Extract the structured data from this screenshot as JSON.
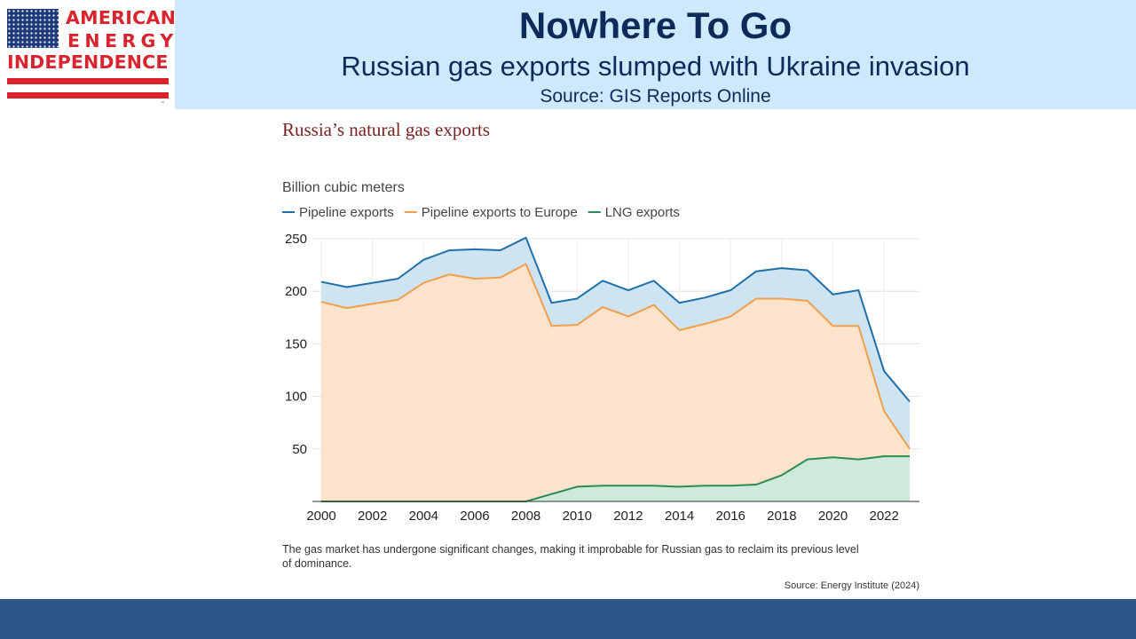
{
  "header": {
    "logo": {
      "line1": "AMERICAN",
      "line2": "ENERGY",
      "line3": "INDEPENDENCE",
      "tm": "™",
      "colors": {
        "red": "#d9232d",
        "blue": "#1f3a7a"
      }
    },
    "title": "Nowhere To Go",
    "subtitle": "Russian gas exports slumped with Ukraine invasion",
    "source": "Source: GIS Reports Online"
  },
  "chart_data": {
    "type": "area",
    "title": "Russia’s natural gas exports",
    "ylabel": "Billion cubic meters",
    "xlim": [
      2000,
      2023
    ],
    "ylim": [
      0,
      250
    ],
    "xticks": [
      2000,
      2002,
      2004,
      2006,
      2008,
      2010,
      2012,
      2014,
      2016,
      2018,
      2020,
      2022
    ],
    "yticks": [
      50,
      100,
      150,
      200,
      250
    ],
    "grid": true,
    "legend_position": "top-left",
    "x": [
      2000,
      2001,
      2002,
      2003,
      2004,
      2005,
      2006,
      2007,
      2008,
      2009,
      2010,
      2011,
      2012,
      2013,
      2014,
      2015,
      2016,
      2017,
      2018,
      2019,
      2020,
      2021,
      2022,
      2023
    ],
    "series": [
      {
        "name": "Pipeline exports",
        "color": "#1f6fa8",
        "fill": "#cfe4f2",
        "values": [
          209,
          204,
          208,
          212,
          230,
          239,
          240,
          239,
          251,
          189,
          193,
          210,
          201,
          210,
          189,
          194,
          201,
          219,
          222,
          220,
          197,
          201,
          124,
          95
        ]
      },
      {
        "name": "Pipeline exports to Europe",
        "color": "#f0a04b",
        "fill": "#fde3cc",
        "values": [
          190,
          184,
          188,
          192,
          208,
          216,
          212,
          213,
          226,
          167,
          168,
          185,
          176,
          187,
          163,
          169,
          176,
          193,
          193,
          191,
          167,
          167,
          86,
          50
        ]
      },
      {
        "name": "LNG exports",
        "color": "#2e8b57",
        "fill": "#cdeadb",
        "values": [
          0,
          0,
          0,
          0,
          0,
          0,
          0,
          0,
          0,
          7,
          14,
          15,
          15,
          15,
          14,
          15,
          15,
          16,
          25,
          40,
          42,
          40,
          43,
          43
        ]
      }
    ],
    "note": "The gas market has undergone significant changes, making it improbable for Russian gas to reclaim its previous level of dominance.",
    "source": "Source: Energy Institute (2024)"
  }
}
